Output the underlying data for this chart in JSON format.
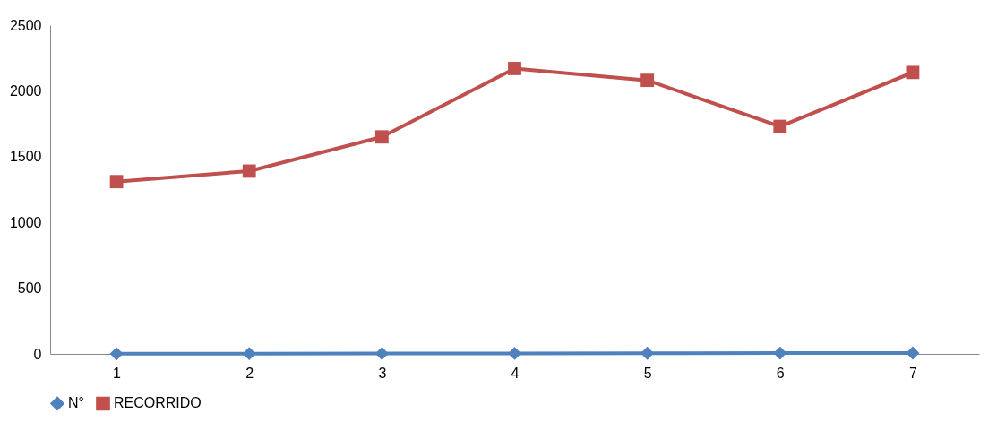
{
  "chart_data": {
    "type": "line",
    "categories": [
      "1",
      "2",
      "3",
      "4",
      "5",
      "6",
      "7"
    ],
    "series": [
      {
        "name": "N°",
        "color": "#4f81bd",
        "marker": "diamond",
        "values": [
          1,
          2,
          3,
          4,
          5,
          6,
          7
        ]
      },
      {
        "name": "RECORRIDO",
        "color": "#c0504d",
        "marker": "square",
        "values": [
          1310,
          1390,
          1650,
          2170,
          2080,
          1730,
          2140
        ]
      }
    ],
    "ylim": [
      0,
      2500
    ],
    "yticks": [
      0,
      500,
      1000,
      1500,
      2000,
      2500
    ],
    "grid": false,
    "legend": "bottom"
  }
}
